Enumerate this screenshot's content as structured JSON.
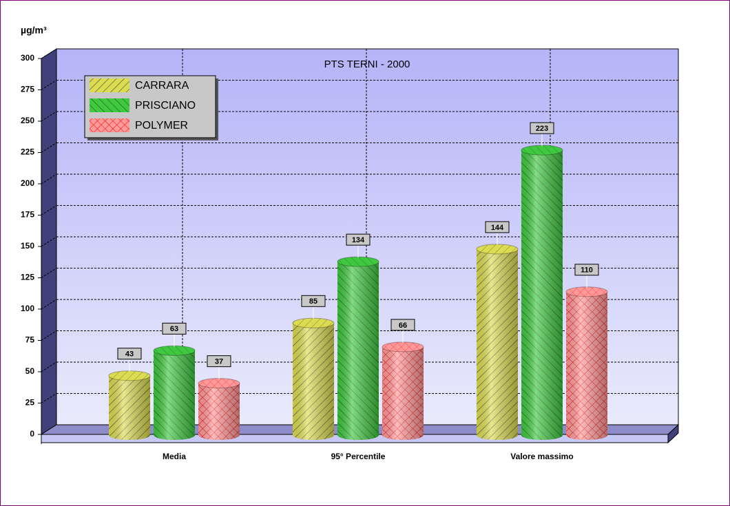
{
  "chart_data": {
    "type": "bar3d",
    "title": "PTS TERNI - 2000",
    "y_label": "µg/m³",
    "categories": [
      "Media",
      "95° Percentile",
      "Valore massimo"
    ],
    "series": [
      {
        "name": "CARRARA",
        "color": "#dcdc50",
        "values": [
          43,
          85,
          144
        ]
      },
      {
        "name": "PRISCIANO",
        "color": "#40c840",
        "values": [
          63,
          134,
          223
        ]
      },
      {
        "name": "POLYMER",
        "color": "#ff9a9a",
        "values": [
          37,
          66,
          110
        ]
      }
    ],
    "ylim": [
      0,
      300
    ],
    "yticks": [
      0,
      25,
      50,
      75,
      100,
      125,
      150,
      175,
      200,
      225,
      250,
      275,
      300
    ],
    "grid": true,
    "legend": "upper left"
  }
}
